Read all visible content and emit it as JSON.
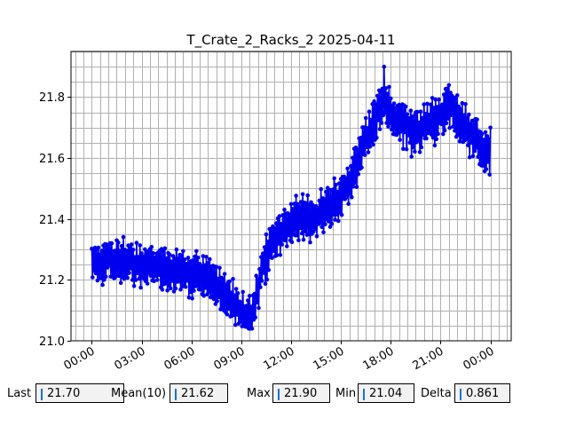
{
  "chart_data": {
    "type": "line",
    "title": "T_Crate_2_Racks_2 2025-04-11",
    "xlabel": "",
    "ylabel": "",
    "x_ticks": [
      "00:00",
      "03:00",
      "06:00",
      "09:00",
      "12:00",
      "15:00",
      "18:00",
      "21:00",
      "00:00"
    ],
    "y_ticks": [
      "21.0",
      "21.2",
      "21.4",
      "21.6",
      "21.8"
    ],
    "xlim_hours": [
      -1.25,
      25.25
    ],
    "ylim": [
      21.0,
      21.95
    ],
    "grid": true,
    "series": [
      {
        "color": "#0000ee",
        "marker": "circle",
        "trend": [
          [
            0.0,
            21.25
          ],
          [
            1.0,
            21.27
          ],
          [
            2.0,
            21.26
          ],
          [
            3.0,
            21.25
          ],
          [
            4.0,
            21.24
          ],
          [
            5.0,
            21.23
          ],
          [
            6.0,
            21.22
          ],
          [
            7.0,
            21.2
          ],
          [
            8.0,
            21.16
          ],
          [
            9.0,
            21.1
          ],
          [
            9.6,
            21.07
          ],
          [
            10.2,
            21.22
          ],
          [
            10.8,
            21.32
          ],
          [
            11.5,
            21.37
          ],
          [
            12.5,
            21.4
          ],
          [
            13.5,
            21.41
          ],
          [
            14.5,
            21.44
          ],
          [
            15.5,
            21.52
          ],
          [
            16.5,
            21.66
          ],
          [
            17.5,
            21.78
          ],
          [
            18.5,
            21.72
          ],
          [
            19.5,
            21.68
          ],
          [
            20.5,
            21.72
          ],
          [
            21.5,
            21.77
          ],
          [
            22.5,
            21.7
          ],
          [
            23.5,
            21.63
          ],
          [
            24.0,
            21.62
          ]
        ],
        "oscillation_amplitude": 0.06,
        "min": 21.04,
        "max": 21.9,
        "last": 21.7
      }
    ]
  },
  "stats": {
    "last_label": "Last",
    "last_value": "21.70",
    "mean_label": "Mean(10)",
    "mean_value": "21.62",
    "max_label": "Max",
    "max_value": "21.90",
    "min_label": "Min",
    "min_value": "21.04",
    "delta_label": "Delta",
    "delta_value": "0.861"
  }
}
